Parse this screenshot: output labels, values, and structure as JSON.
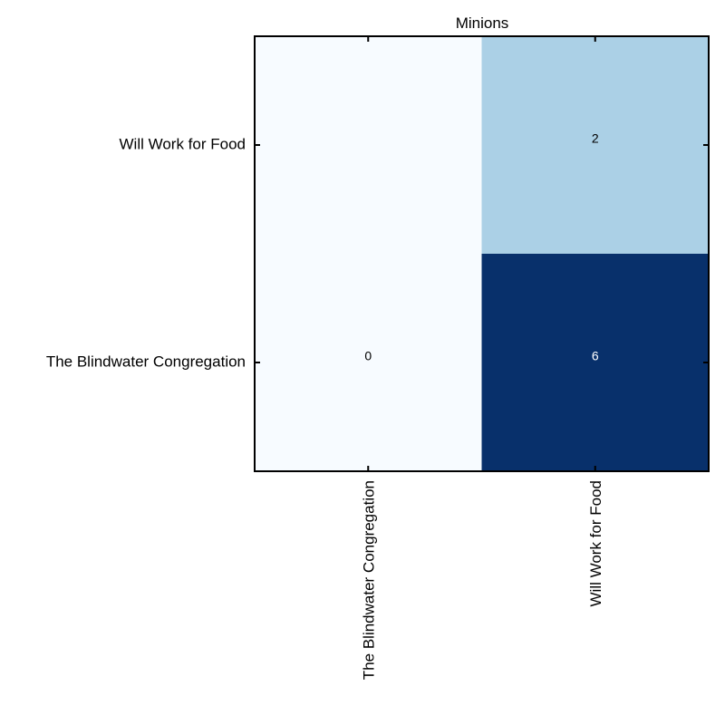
{
  "chart_data": {
    "type": "heatmap",
    "title": "Minions",
    "xlabel": "",
    "ylabel": "",
    "x_categories": [
      "The Blindwater Congregation",
      "Will Work for Food"
    ],
    "y_categories": [
      "Will Work for Food",
      "The Blindwater Congregation"
    ],
    "values": [
      [
        null,
        2
      ],
      [
        0,
        6
      ]
    ],
    "value_range": [
      0,
      6
    ],
    "colormap": "Blues",
    "colors": {
      "low": "#f7fbff",
      "mid": "#abd0e6",
      "high": "#08306b",
      "empty": "#f7fbff",
      "text_dark": "#000000",
      "text_light": "#ffffff",
      "frame": "#000000"
    },
    "grid": false,
    "legend": "none"
  }
}
